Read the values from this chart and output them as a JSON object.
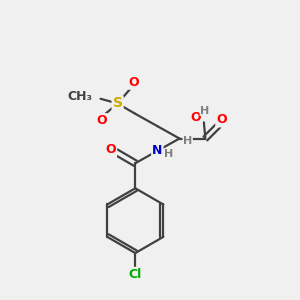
{
  "bg_color": "#f0f0f0",
  "atom_colors": {
    "C": "#404040",
    "O": "#ff0000",
    "N": "#0000cc",
    "S": "#ccaa00",
    "Cl": "#00aa00",
    "H": "#808080"
  },
  "bond_color": "#404040",
  "bond_width": 1.6,
  "font_size": 9,
  "figsize": [
    3.0,
    3.0
  ],
  "dpi": 100
}
